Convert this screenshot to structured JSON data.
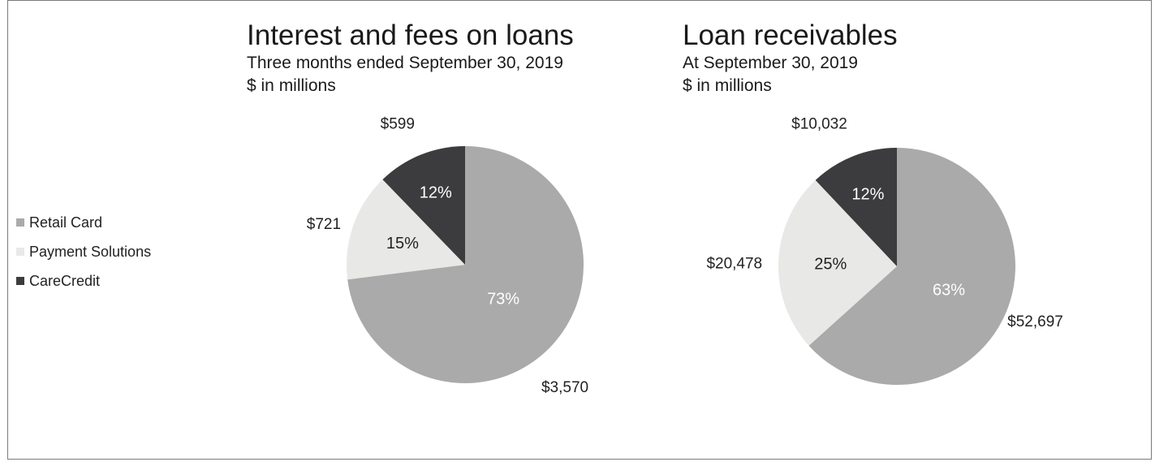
{
  "legend": [
    {
      "label": "Retail Card",
      "color": "#aaaaaa"
    },
    {
      "label": "Payment Solutions",
      "color": "#e8e8e6"
    },
    {
      "label": "CareCredit",
      "color": "#3c3c3e"
    }
  ],
  "chart_data": [
    {
      "type": "pie",
      "title": "Interest and fees on loans",
      "subtitle": "Three months ended September 30, 2019",
      "units": "$ in millions",
      "slices": [
        {
          "name": "Retail Card",
          "value": 3570,
          "value_label": "$3,570",
          "percent_label": "73%",
          "color": "#aaaaaa",
          "pct_color": "#ffffff"
        },
        {
          "name": "Payment Solutions",
          "value": 721,
          "value_label": "$721",
          "percent_label": "15%",
          "color": "#e8e8e6",
          "pct_color": "#222222"
        },
        {
          "name": "CareCredit",
          "value": 599,
          "value_label": "$599",
          "percent_label": "12%",
          "color": "#3c3c3e",
          "pct_color": "#ffffff"
        }
      ]
    },
    {
      "type": "pie",
      "title": "Loan receivables",
      "subtitle": "At September 30, 2019",
      "units": "$ in millions",
      "slices": [
        {
          "name": "Retail Card",
          "value": 52697,
          "value_label": "$52,697",
          "percent_label": "63%",
          "color": "#aaaaaa",
          "pct_color": "#ffffff"
        },
        {
          "name": "Payment Solutions",
          "value": 20478,
          "value_label": "$20,478",
          "percent_label": "25%",
          "color": "#e8e8e6",
          "pct_color": "#222222"
        },
        {
          "name": "CareCredit",
          "value": 10032,
          "value_label": "$10,032",
          "percent_label": "12%",
          "color": "#3c3c3e",
          "pct_color": "#ffffff"
        }
      ]
    }
  ]
}
